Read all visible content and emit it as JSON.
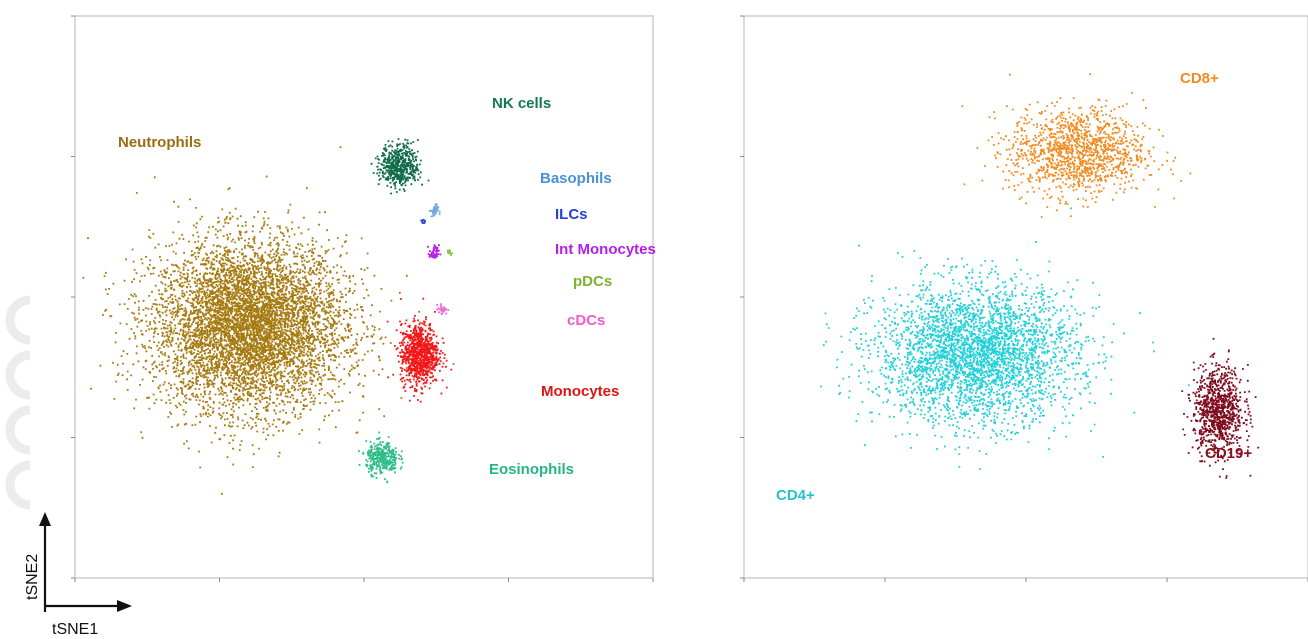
{
  "orientation": {
    "x_label": "tSNE1",
    "y_label": "tSNE2"
  },
  "chart_data": [
    {
      "type": "scatter",
      "title": "",
      "xlim": [
        -100,
        100
      ],
      "ylim": [
        -100,
        100
      ],
      "grid": false,
      "series": [
        {
          "name": "Neutrophils",
          "color": "#A67A0F",
          "label_color": "#9A6E10",
          "center": [
            -40,
            -10
          ],
          "spread": [
            30,
            27
          ],
          "n": 6200
        },
        {
          "name": "NK cells",
          "color": "#0F6B48",
          "label_color": "#137A52",
          "center": [
            12,
            47
          ],
          "spread": [
            6,
            7
          ],
          "n": 520
        },
        {
          "name": "Basophils",
          "color": "#6FA6E0",
          "label_color": "#4A90D9",
          "center": [
            24,
            31
          ],
          "spread": [
            1.2,
            2
          ],
          "n": 40
        },
        {
          "name": "ILCs",
          "color": "#3050E0",
          "label_color": "#2340D8",
          "center": [
            20,
            27
          ],
          "spread": [
            0.8,
            0.8
          ],
          "n": 12
        },
        {
          "name": "Int Monocytes",
          "color": "#B41EE6",
          "label_color": "#B41EE6",
          "center": [
            24,
            16
          ],
          "spread": [
            1.5,
            2.5
          ],
          "n": 45
        },
        {
          "name": "pDCs",
          "color": "#8DC63F",
          "label_color": "#7DB32E",
          "center": [
            29,
            16
          ],
          "spread": [
            1,
            1
          ],
          "n": 12
        },
        {
          "name": "cDCs",
          "color": "#F06AD2",
          "label_color": "#EE5CC8",
          "center": [
            27,
            -4
          ],
          "spread": [
            1.5,
            1.5
          ],
          "n": 35
        },
        {
          "name": "Monocytes",
          "color": "#F21818",
          "label_color": "#E01414",
          "center": [
            19,
            -20
          ],
          "spread": [
            6,
            10
          ],
          "n": 900
        },
        {
          "name": "Eosinophils",
          "color": "#2EBD8A",
          "label_color": "#25B585",
          "center": [
            6,
            -57
          ],
          "spread": [
            5,
            5
          ],
          "n": 350
        }
      ]
    },
    {
      "type": "scatter",
      "title": "",
      "xlim": [
        -100,
        100
      ],
      "ylim": [
        -100,
        100
      ],
      "grid": false,
      "series": [
        {
          "name": "CD4+",
          "color": "#22D0D8",
          "label_color": "#22C4CC",
          "center": [
            -18,
            -20
          ],
          "spread": [
            32,
            22
          ],
          "n": 3400
        },
        {
          "name": "CD8+",
          "color": "#F28A1E",
          "label_color": "#F28A1E",
          "center": [
            18,
            52
          ],
          "spread": [
            22,
            14
          ],
          "n": 1300
        },
        {
          "name": "CD19+",
          "color": "#7E0B1E",
          "label_color": "#8B1020",
          "center": [
            68,
            -40
          ],
          "spread": [
            8,
            14
          ],
          "n": 900
        }
      ]
    }
  ],
  "colors": {
    "axis": "#1a1a1a",
    "frame": "#b5b5b5",
    "tick_text": "#888888"
  }
}
